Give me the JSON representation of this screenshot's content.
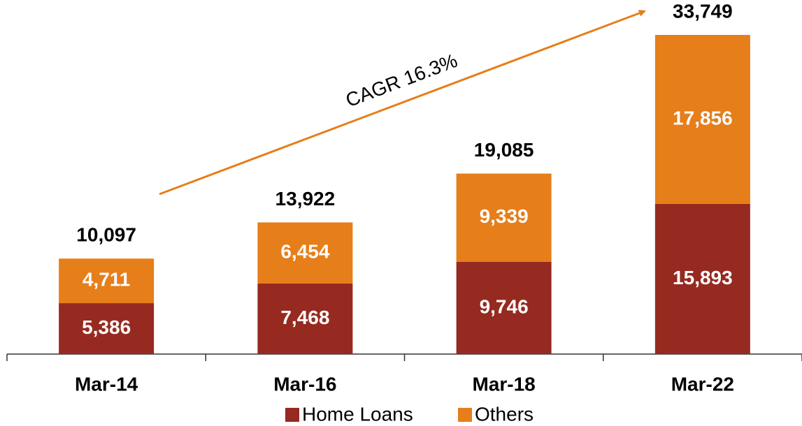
{
  "chart_data": {
    "type": "stacked_bar",
    "categories": [
      "Mar-14",
      "Mar-16",
      "Mar-18",
      "Mar-22"
    ],
    "series": [
      {
        "name": "Home Loans",
        "color": "#962a20",
        "values": [
          5386,
          7468,
          9746,
          15893
        ],
        "value_labels": [
          "5,386",
          "7,468",
          "9,746",
          "15,893"
        ]
      },
      {
        "name": "Others",
        "color": "#e67e1a",
        "values": [
          4711,
          6454,
          9339,
          17856
        ],
        "value_labels": [
          "4,711",
          "6,454",
          "9,339",
          "17,856"
        ]
      }
    ],
    "totals": {
      "values": [
        10097,
        13922,
        19085,
        33749
      ],
      "value_labels": [
        "10,097",
        "13,922",
        "19,085",
        "33,749"
      ]
    },
    "annotation": "CAGR 16.3%",
    "legend": "bottom"
  }
}
